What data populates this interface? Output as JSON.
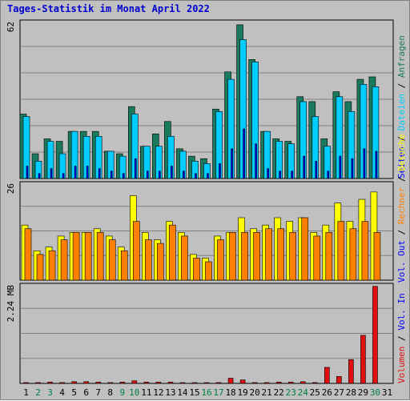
{
  "window": {
    "title": "Tages-Statistik im Monat April 2022"
  },
  "colors": {
    "anfragen": "#1a7a5e",
    "dateien": "#00ccff",
    "seiten": "#0000ff",
    "besuche": "#ffff00",
    "rechner": "#ff8000",
    "volumen": "#e01010",
    "weekend_day_label": "#008040",
    "weekday_label": "#000000",
    "plot_bg": "#c0c0c0",
    "grid": "#808080"
  },
  "chart_data": [
    {
      "type": "bar",
      "panel": "top",
      "ymax_label": "62",
      "ylim": [
        0,
        62
      ],
      "categories": [
        "1",
        "2",
        "3",
        "4",
        "5",
        "6",
        "7",
        "8",
        "9",
        "10",
        "11",
        "12",
        "13",
        "14",
        "15",
        "16",
        "17",
        "18",
        "19",
        "20",
        "21",
        "22",
        "23",
        "24",
        "25",
        "26",
        "27",
        "28",
        "29",
        "30",
        "31"
      ],
      "weekend_days": [
        "2",
        "3",
        "9",
        "10",
        "16",
        "17",
        "23",
        "24",
        "30"
      ],
      "series": [
        {
          "name": "Anfragen",
          "color_key": "anfragen",
          "values": [
            26,
            10,
            16,
            15,
            19,
            19,
            19,
            11,
            10,
            29,
            13,
            18,
            23,
            12,
            9,
            8,
            28,
            43,
            62,
            48,
            19,
            16,
            15,
            33,
            31,
            16,
            35,
            31,
            40,
            41,
            null
          ]
        },
        {
          "name": "Dateien",
          "color_key": "dateien",
          "values": [
            25,
            7,
            15,
            10,
            19,
            17,
            17,
            11,
            9,
            26,
            13,
            13,
            17,
            11,
            7,
            6,
            27,
            40,
            56,
            47,
            19,
            15,
            14,
            31,
            25,
            13,
            33,
            27,
            38,
            37,
            null
          ]
        },
        {
          "name": "Seiten",
          "color_key": "seiten",
          "values": [
            5,
            2,
            4,
            2,
            5,
            5,
            4,
            3,
            2,
            8,
            3,
            3,
            5,
            3,
            2,
            2,
            6,
            12,
            20,
            14,
            4,
            3,
            3,
            9,
            7,
            3,
            9,
            8,
            12,
            11,
            null
          ]
        }
      ],
      "legend": [
        {
          "text": "Anfragen",
          "color_key": "anfragen"
        },
        {
          "text": "Dateien",
          "color_key": "dateien"
        },
        {
          "text": "Seiten",
          "color_key": "seiten"
        }
      ]
    },
    {
      "type": "bar",
      "panel": "middle",
      "ymax_label": "26",
      "ylim": [
        0,
        26
      ],
      "series": [
        {
          "name": "Besuche",
          "color_key": "besuche",
          "values": [
            15,
            8,
            9,
            12,
            13,
            13,
            14,
            12,
            9,
            23,
            13,
            11,
            16,
            13,
            7,
            6,
            12,
            13,
            17,
            14,
            15,
            17,
            16,
            17,
            13,
            15,
            21,
            16,
            22,
            24,
            null
          ]
        },
        {
          "name": "Rechner",
          "color_key": "rechner",
          "values": [
            14,
            7,
            8,
            11,
            13,
            13,
            13,
            11,
            8,
            16,
            11,
            10,
            15,
            12,
            6,
            5,
            11,
            13,
            13,
            13,
            14,
            14,
            13,
            17,
            12,
            13,
            16,
            14,
            16,
            13,
            null
          ]
        }
      ],
      "legend": [
        {
          "text": "Besuche",
          "color_key": "besuche"
        },
        {
          "text": "Rechner",
          "color_key": "rechner"
        },
        {
          "text": "Vol. Out",
          "color_key": "seiten"
        }
      ]
    },
    {
      "type": "bar",
      "panel": "bottom",
      "ymax_label": "2.24 MB",
      "ylim": [
        0,
        2.24
      ],
      "series": [
        {
          "name": "Volumen",
          "color_key": "volumen",
          "values": [
            0.02,
            0.02,
            0.03,
            0.02,
            0.04,
            0.04,
            0.03,
            0.02,
            0.03,
            0.06,
            0.03,
            0.03,
            0.03,
            0.01,
            0.01,
            0.01,
            0.02,
            0.12,
            0.08,
            0.02,
            0.02,
            0.03,
            0.03,
            0.04,
            0.02,
            0.37,
            0.16,
            0.55,
            1.11,
            2.24,
            null
          ]
        }
      ],
      "legend": [
        {
          "text": "Vol. In",
          "color_key": "seiten"
        },
        {
          "text": "Volumen",
          "color_key": "volumen"
        }
      ]
    }
  ],
  "legend_separator": " / "
}
